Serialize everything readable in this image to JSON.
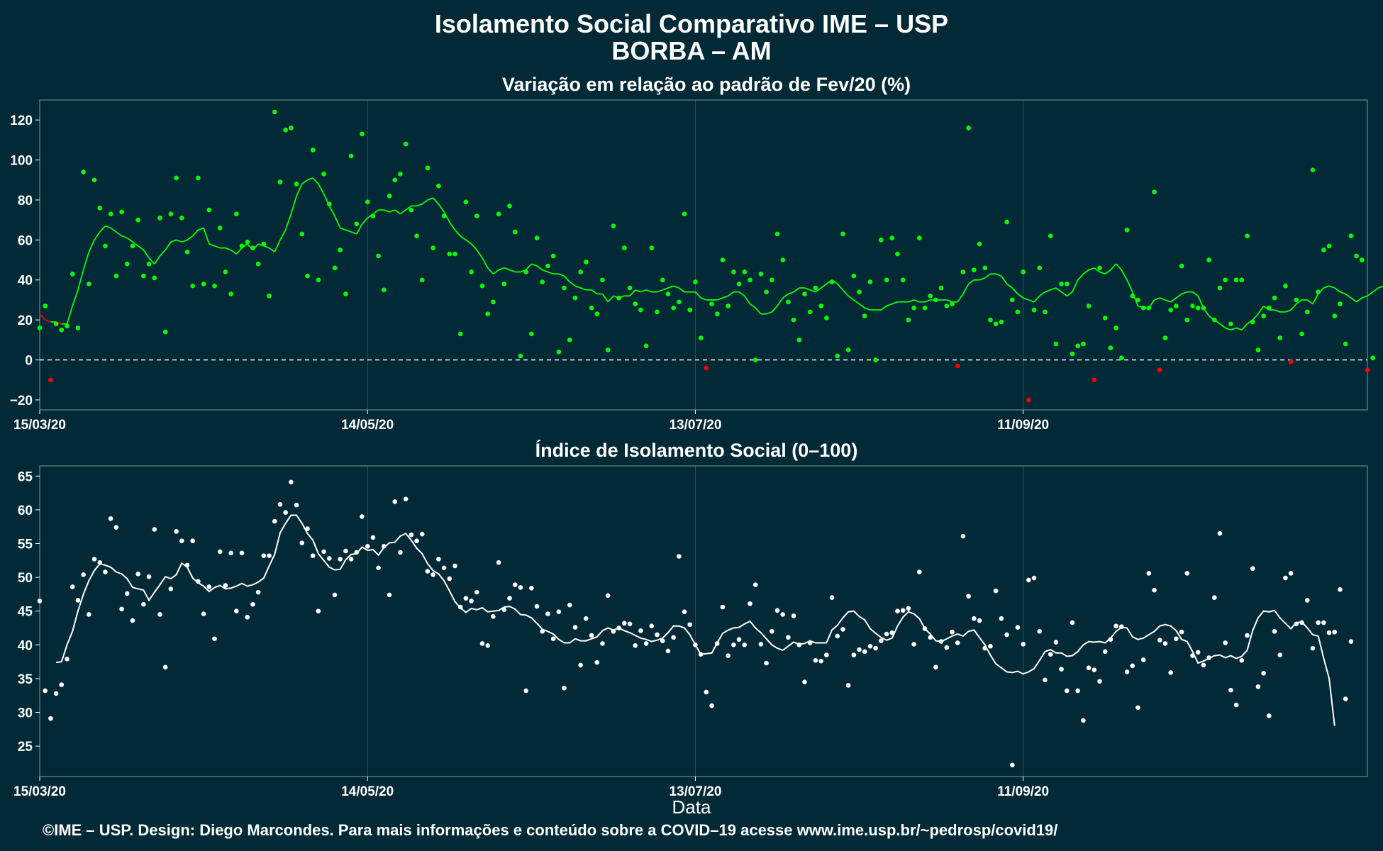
{
  "page": {
    "title": "Isolamento Social Comparativo IME – USP",
    "subtitle": "BORBA – AM",
    "footer": "©IME – USP. Design: Diego Marcondes. Para mais informações e conteúdo sobre a COVID–19 acesse www.ime.usp.br/~pedrosp/covid19/"
  },
  "colors": {
    "background": "#022a36",
    "green": "#00ff00",
    "red": "#ff0000",
    "white": "#ffffff",
    "grid": "#2f4f57"
  },
  "chart_data": [
    {
      "type": "scatter",
      "title": "Variação em relação ao padrão de Fev/20 (%)",
      "xlabel": "",
      "ylabel": "",
      "x_start": "15/03/20",
      "x_ticks": [
        "15/03/20",
        "14/05/20",
        "13/07/20",
        "11/09/20"
      ],
      "x_tick_days": [
        0,
        60,
        120,
        180
      ],
      "x_range_days": [
        0,
        243
      ],
      "ylim": [
        -25,
        130
      ],
      "y_ticks": [
        -20,
        0,
        20,
        40,
        60,
        80,
        100,
        120
      ],
      "reference_line": 0,
      "grid": true,
      "series": [
        {
          "values": [
            16,
            27,
            -10,
            18,
            15,
            17,
            43,
            16,
            94,
            38,
            90,
            76,
            57,
            73,
            42,
            74,
            48,
            57,
            70,
            42,
            48,
            41,
            71,
            14,
            73,
            91,
            71,
            54,
            37,
            91,
            38,
            75,
            37,
            66,
            44,
            33,
            73,
            57,
            59,
            56,
            48,
            58,
            32,
            124,
            89,
            115,
            116,
            88,
            63,
            42,
            105,
            40,
            93,
            78,
            46,
            55,
            33,
            102,
            68,
            113,
            79,
            72,
            52,
            35,
            82,
            90,
            93,
            108,
            75,
            62,
            40,
            96,
            56,
            87,
            72,
            53,
            53,
            13,
            79,
            44,
            72,
            37,
            23,
            29,
            73,
            38,
            77,
            64,
            2,
            44,
            13,
            61,
            39,
            47,
            52,
            4,
            36,
            10,
            31,
            44,
            49,
            26,
            23,
            40,
            5,
            67,
            31,
            56,
            36,
            28,
            25,
            7,
            56,
            24,
            40,
            33,
            26,
            29,
            73,
            25,
            39,
            11,
            -4,
            28,
            23,
            50,
            27,
            44,
            38,
            44,
            40,
            0,
            43,
            34,
            40,
            63,
            50,
            29,
            20,
            10,
            33,
            24,
            36,
            27,
            21,
            39,
            2,
            63,
            5,
            42,
            34,
            22,
            39,
            0,
            60,
            40,
            61,
            53,
            40,
            20,
            26,
            61,
            26,
            32,
            30,
            36,
            27,
            28,
            -3,
            44,
            116,
            45,
            58,
            46,
            20,
            18,
            19,
            69,
            30,
            24,
            44,
            -20,
            25,
            46,
            24,
            62,
            8,
            38,
            38,
            3,
            7,
            8,
            27,
            -10,
            46,
            21,
            6,
            16,
            1,
            65,
            32,
            30,
            26,
            26,
            84,
            -5,
            11,
            25,
            27,
            47,
            20,
            27,
            26,
            26,
            50,
            20,
            36,
            40,
            18,
            40,
            40,
            62,
            19,
            5,
            22,
            26,
            31,
            11,
            37,
            -1,
            30,
            13,
            24,
            95,
            34,
            55,
            57,
            22,
            28,
            8,
            62,
            52,
            50,
            -5,
            1
          ]
        },
        {
          "values": [
            23,
            20,
            19,
            19,
            18,
            18,
            27,
            35,
            45,
            54,
            60,
            64,
            67,
            66,
            64,
            62,
            61,
            59,
            57,
            55,
            51,
            48,
            52,
            55,
            59,
            60,
            59,
            60,
            62,
            65,
            66,
            58,
            57,
            56,
            56,
            55,
            53,
            56,
            58,
            55,
            58,
            57,
            56,
            54,
            60,
            65,
            73,
            82,
            88,
            90,
            91,
            88,
            83,
            77,
            72,
            66,
            65,
            64,
            63,
            68,
            71,
            73,
            75,
            75,
            74,
            75,
            73,
            75,
            77,
            77,
            78,
            80,
            81,
            78,
            74,
            69,
            65,
            62,
            60,
            58,
            55,
            51,
            46,
            43,
            45,
            46,
            45,
            44,
            44,
            45,
            48,
            47,
            45,
            44,
            43,
            43,
            42,
            39,
            37,
            36,
            35,
            35,
            33,
            33,
            29,
            32,
            31,
            32,
            32,
            35,
            34,
            35,
            34,
            34,
            35,
            36,
            37,
            36,
            34,
            34,
            34,
            31,
            30,
            30,
            30,
            31,
            32,
            34,
            34,
            32,
            28,
            26,
            23,
            23,
            24,
            27,
            31,
            33,
            34,
            36,
            36,
            35,
            34,
            36,
            38,
            40,
            38,
            35,
            32,
            30,
            28,
            26,
            25,
            25,
            25,
            27,
            28,
            29,
            29,
            29,
            30,
            29,
            29,
            30,
            30,
            30,
            30,
            29,
            29,
            33,
            38,
            40,
            40,
            41,
            43,
            43,
            42,
            38,
            36,
            33,
            31,
            30,
            29,
            32,
            34,
            35,
            36,
            34,
            32,
            34,
            40,
            43,
            45,
            46,
            44,
            43,
            45,
            48,
            45,
            40,
            34,
            27,
            26,
            26,
            30,
            31,
            30,
            29,
            31,
            33,
            34,
            34,
            32,
            26,
            22,
            20,
            18,
            16,
            15,
            16,
            15,
            18,
            20,
            23,
            27,
            25,
            25,
            24,
            24,
            25,
            28,
            30,
            30,
            28,
            33,
            36,
            37,
            36,
            34,
            33,
            31,
            29,
            31,
            32,
            34,
            36,
            37,
            36,
            34,
            30,
            28,
            27,
            24,
            20,
            21,
            22,
            22,
            21,
            21,
            22,
            21,
            21,
            22,
            22,
            21,
            28,
            32,
            34,
            38,
            43,
            44,
            42,
            45,
            43,
            40,
            37,
            40,
            41,
            40,
            35,
            30
          ]
        }
      ]
    },
    {
      "type": "scatter",
      "title": "Índice de Isolamento Social (0–100)",
      "xlabel": "Data",
      "ylabel": "",
      "x_start": "15/03/20",
      "x_ticks": [
        "15/03/20",
        "14/05/20",
        "13/07/20",
        "11/09/20"
      ],
      "x_tick_days": [
        0,
        60,
        120,
        180
      ],
      "x_range_days": [
        0,
        243
      ],
      "ylim": [
        20.5,
        66.5
      ],
      "y_ticks": [
        25,
        30,
        35,
        40,
        45,
        50,
        55,
        60,
        65
      ],
      "grid": true,
      "series": [
        {
          "values": [
            46.5,
            33.2,
            29.1,
            32.8,
            34.1,
            37.9,
            48.6,
            46.6,
            50.4,
            44.5,
            52.7,
            52.2,
            50.8,
            58.7,
            57.4,
            45.3,
            47.6,
            43.6,
            50.5,
            46.0,
            50.1,
            57.1,
            44.5,
            36.7,
            48.3,
            56.8,
            55.4,
            51.8,
            55.4,
            49.4,
            44.6,
            48.6,
            40.9,
            53.8,
            48.8,
            53.6,
            45.0,
            53.6,
            44.1,
            46.0,
            47.8,
            53.2,
            53.2,
            58.3,
            60.8,
            59.6,
            64.1,
            60.7,
            55.1,
            57.2,
            53.2,
            45.0,
            53.8,
            52.8,
            47.4,
            52.7,
            53.9,
            52.7,
            53.7,
            59.0,
            54.6,
            55.9,
            51.4,
            54.6,
            47.4,
            61.2,
            53.7,
            61.6,
            56.3,
            55.4,
            56.4,
            50.9,
            50.4,
            52.7,
            51.4,
            49.8,
            51.7,
            45.6,
            46.9,
            46.5,
            47.8,
            40.2,
            39.9,
            44.2,
            52.2,
            45.2,
            46.9,
            48.9,
            48.5,
            33.2,
            48.4,
            45.7,
            42.0,
            44.6,
            40.9,
            44.9,
            33.6,
            45.9,
            42.6,
            37.0,
            43.9,
            41.4,
            37.4,
            40.2,
            47.3,
            42.0,
            42.5,
            43.2,
            43.1,
            39.9,
            42.1,
            40.2,
            42.8,
            41.5,
            40.6,
            39.1,
            41.1,
            53.1,
            44.9,
            43.0,
            40.0,
            38.6,
            33.0,
            31.0,
            40.2,
            45.6,
            38.4,
            40.0,
            40.8,
            40.0,
            46.1,
            48.9,
            40.1,
            37.3,
            42.0,
            45.1,
            44.5,
            41.1,
            44.3,
            40.0,
            34.5,
            40.3,
            37.7,
            37.6,
            38.5,
            47.0,
            41.3,
            42.3,
            34.0,
            38.5,
            39.3,
            39.0,
            39.8,
            39.5,
            40.6,
            41.6,
            41.8,
            45.0,
            45.1,
            45.4,
            40.1,
            50.8,
            42.4,
            41.1,
            36.7,
            40.5,
            39.6,
            41.9,
            40.3,
            56.1,
            47.2,
            43.9,
            43.6,
            39.5,
            39.8,
            48.0,
            43.9,
            41.5,
            22.2,
            42.6,
            40.1,
            49.6,
            49.9,
            42.0,
            34.8,
            38.6,
            40.4,
            36.4,
            33.2,
            43.3,
            33.2,
            28.8,
            36.6,
            36.3,
            34.6,
            39.0,
            40.8,
            42.8,
            42.7,
            36.0,
            36.9,
            30.7,
            37.8,
            50.6,
            48.1,
            40.7,
            40.2,
            35.9,
            40.9,
            41.9,
            50.6,
            38.4,
            38.9,
            37.0,
            38.1,
            47.0,
            56.5,
            40.3,
            33.3,
            31.1,
            37.7,
            41.4,
            51.3,
            33.8,
            35.8,
            29.5,
            42.0,
            38.5,
            49.9,
            50.6,
            43.1,
            43.3,
            46.6,
            39.5,
            43.3,
            43.3,
            41.8,
            41.9,
            48.2,
            32.0,
            40.5
          ]
        },
        {
          "values": [
            37.4,
            37.5,
            40.0,
            42.0,
            45.0,
            47.5,
            49.5,
            51.0,
            52.0,
            51.8,
            51.5,
            50.8,
            50.5,
            49.8,
            48.5,
            48.3,
            48.1,
            46.6,
            47.8,
            48.9,
            50.1,
            49.8,
            50.4,
            52.1,
            51.5,
            49.9,
            49.2,
            48.7,
            47.9,
            48.5,
            48.8,
            48.3,
            48.4,
            48.7,
            49.1,
            48.7,
            48.9,
            49.3,
            49.9,
            51.7,
            53.4,
            56.6,
            58.0,
            59.2,
            59.2,
            58.0,
            56.5,
            55.5,
            53.5,
            52.5,
            51.5,
            51.1,
            51.2,
            52.6,
            53.4,
            53.5,
            54.5,
            54.0,
            54.1,
            53.3,
            54.4,
            55.1,
            55.2,
            56.1,
            56.5,
            55.5,
            54.3,
            53.5,
            52.0,
            51.0,
            50.5,
            49.5,
            48.0,
            46.4,
            45.5,
            44.8,
            45.4,
            45.2,
            45.5,
            44.9,
            45.0,
            45.1,
            45.6,
            45.7,
            45.3,
            44.5,
            44.4,
            44.0,
            43.2,
            42.3,
            42.0,
            41.6,
            40.8,
            40.3,
            40.3,
            40.9,
            40.6,
            40.6,
            40.9,
            41.2,
            42.1,
            42.5,
            42.2,
            42.5,
            42.1,
            41.8,
            41.4,
            41.0,
            40.8,
            40.5,
            40.7,
            41.0,
            41.8,
            42.8,
            42.8,
            42.5,
            41.5,
            40.0,
            38.6,
            38.7,
            38.8,
            40.3,
            41.7,
            42.2,
            42.5,
            42.6,
            43.1,
            43.5,
            42.5,
            41.8,
            40.9,
            40.0,
            39.5,
            39.2,
            39.8,
            40.4,
            40.1,
            40.2,
            40.6,
            40.3,
            40.3,
            40.3,
            42.2,
            42.9,
            44.0,
            44.9,
            45.0,
            44.2,
            43.7,
            42.4,
            41.7,
            41.1,
            40.7,
            41.0,
            42.8,
            44.1,
            44.9,
            44.6,
            43.9,
            42.4,
            41.6,
            40.6,
            40.5,
            40.9,
            41.3,
            41.6,
            41.3,
            42.0,
            42.2,
            41.1,
            40.0,
            38.5,
            37.2,
            36.6,
            36.0,
            35.9,
            36.1,
            35.7,
            36.0,
            36.5,
            37.7,
            39.0,
            39.3,
            38.8,
            38.8,
            38.3,
            38.4,
            39.0,
            40.0,
            40.5,
            40.4,
            40.5,
            40.3,
            41.0,
            42.0,
            42.6,
            42.5,
            41.2,
            40.8,
            41.0,
            41.5,
            42.0,
            42.8,
            43.0,
            42.8,
            42.1,
            40.8,
            40.5,
            39.0,
            37.3,
            37.6,
            38.0,
            38.4,
            38.5,
            38.1,
            38.4,
            38.0,
            38.3,
            39.2,
            42.1,
            44.0,
            45.0,
            44.9,
            45.1,
            44.0,
            43.2,
            42.4,
            43.3,
            43.4,
            42.5,
            41.5,
            41.3,
            38.0,
            35.0,
            28.0
          ]
        }
      ]
    }
  ]
}
